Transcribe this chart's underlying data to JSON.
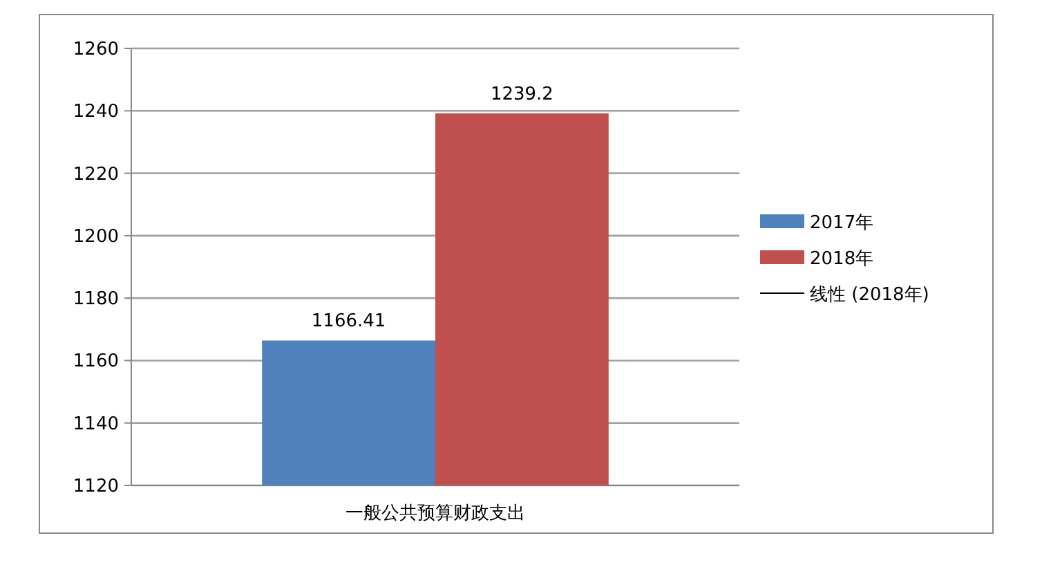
{
  "chart_data": {
    "type": "bar",
    "categories": [
      "一般公共预算财政支出"
    ],
    "series": [
      {
        "name": "2017年",
        "color": "#4f81bd",
        "values": [
          1166.41
        ]
      },
      {
        "name": "2018年",
        "color": "#c0504d",
        "values": [
          1239.2
        ]
      },
      {
        "name": "线性 (2018年)",
        "type": "line",
        "color": "#000000",
        "values": [
          null
        ]
      }
    ],
    "ylim": [
      1120,
      1260
    ],
    "yticks": [
      1120,
      1140,
      1160,
      1180,
      1200,
      1220,
      1240,
      1260
    ],
    "grid": "y",
    "legend": "right",
    "data_labels": true
  }
}
